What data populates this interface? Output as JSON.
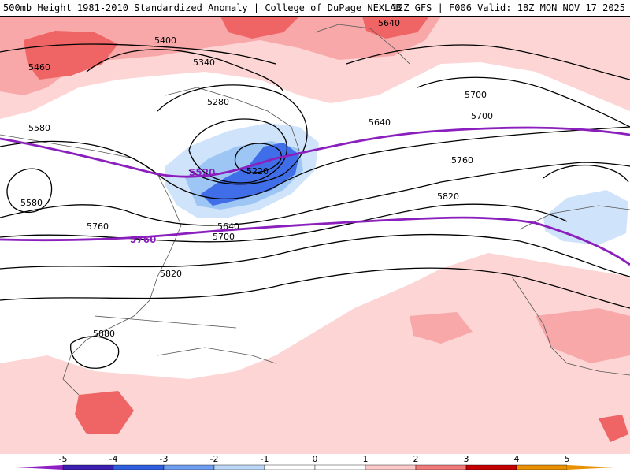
{
  "header": {
    "title_left": "500mb Height 1981-2010 Standardized Anomaly | College of DuPage NEXLAB",
    "title_right": "12Z GFS | F006 Valid: 18Z MON NOV 17 2025"
  },
  "colors": {
    "contour": "#000000",
    "highlight_contour": "#8a1fbd",
    "anomaly_pos1": "#fdd5d5",
    "anomaly_pos2": "#f8a8a8",
    "anomaly_pos3": "#ef6464",
    "anomaly_neg1": "#cfe3fb",
    "anomaly_neg2": "#9ec6f5",
    "anomaly_neg3": "#3f6ee8"
  },
  "contour_labels": [
    {
      "text": "5400"
    },
    {
      "text": "5460"
    },
    {
      "text": "5340"
    },
    {
      "text": "5280"
    },
    {
      "text": "5640"
    },
    {
      "text": "5700"
    },
    {
      "text": "5580"
    },
    {
      "text": "5640"
    },
    {
      "text": "5700"
    },
    {
      "text": "5760"
    },
    {
      "text": "5220"
    },
    {
      "text": "5580"
    },
    {
      "text": "5820"
    },
    {
      "text": "5760"
    },
    {
      "text": "5640"
    },
    {
      "text": "5700"
    },
    {
      "text": "5820"
    },
    {
      "text": "5880"
    }
  ],
  "highlight_labels": [
    {
      "text": "5520"
    },
    {
      "text": "5760"
    }
  ],
  "colorbar": {
    "labels": [
      "-5",
      "-4",
      "-3",
      "-2",
      "-1",
      "0",
      "1",
      "2",
      "3",
      "4",
      "5"
    ],
    "colors": [
      "#8e1fc4",
      "#3b1fb0",
      "#2f5fe0",
      "#6f9ef0",
      "#bcd6f8",
      "#ffffff",
      "#ffffff",
      "#fcc9c9",
      "#f07a7a",
      "#c40000",
      "#e89000"
    ]
  }
}
